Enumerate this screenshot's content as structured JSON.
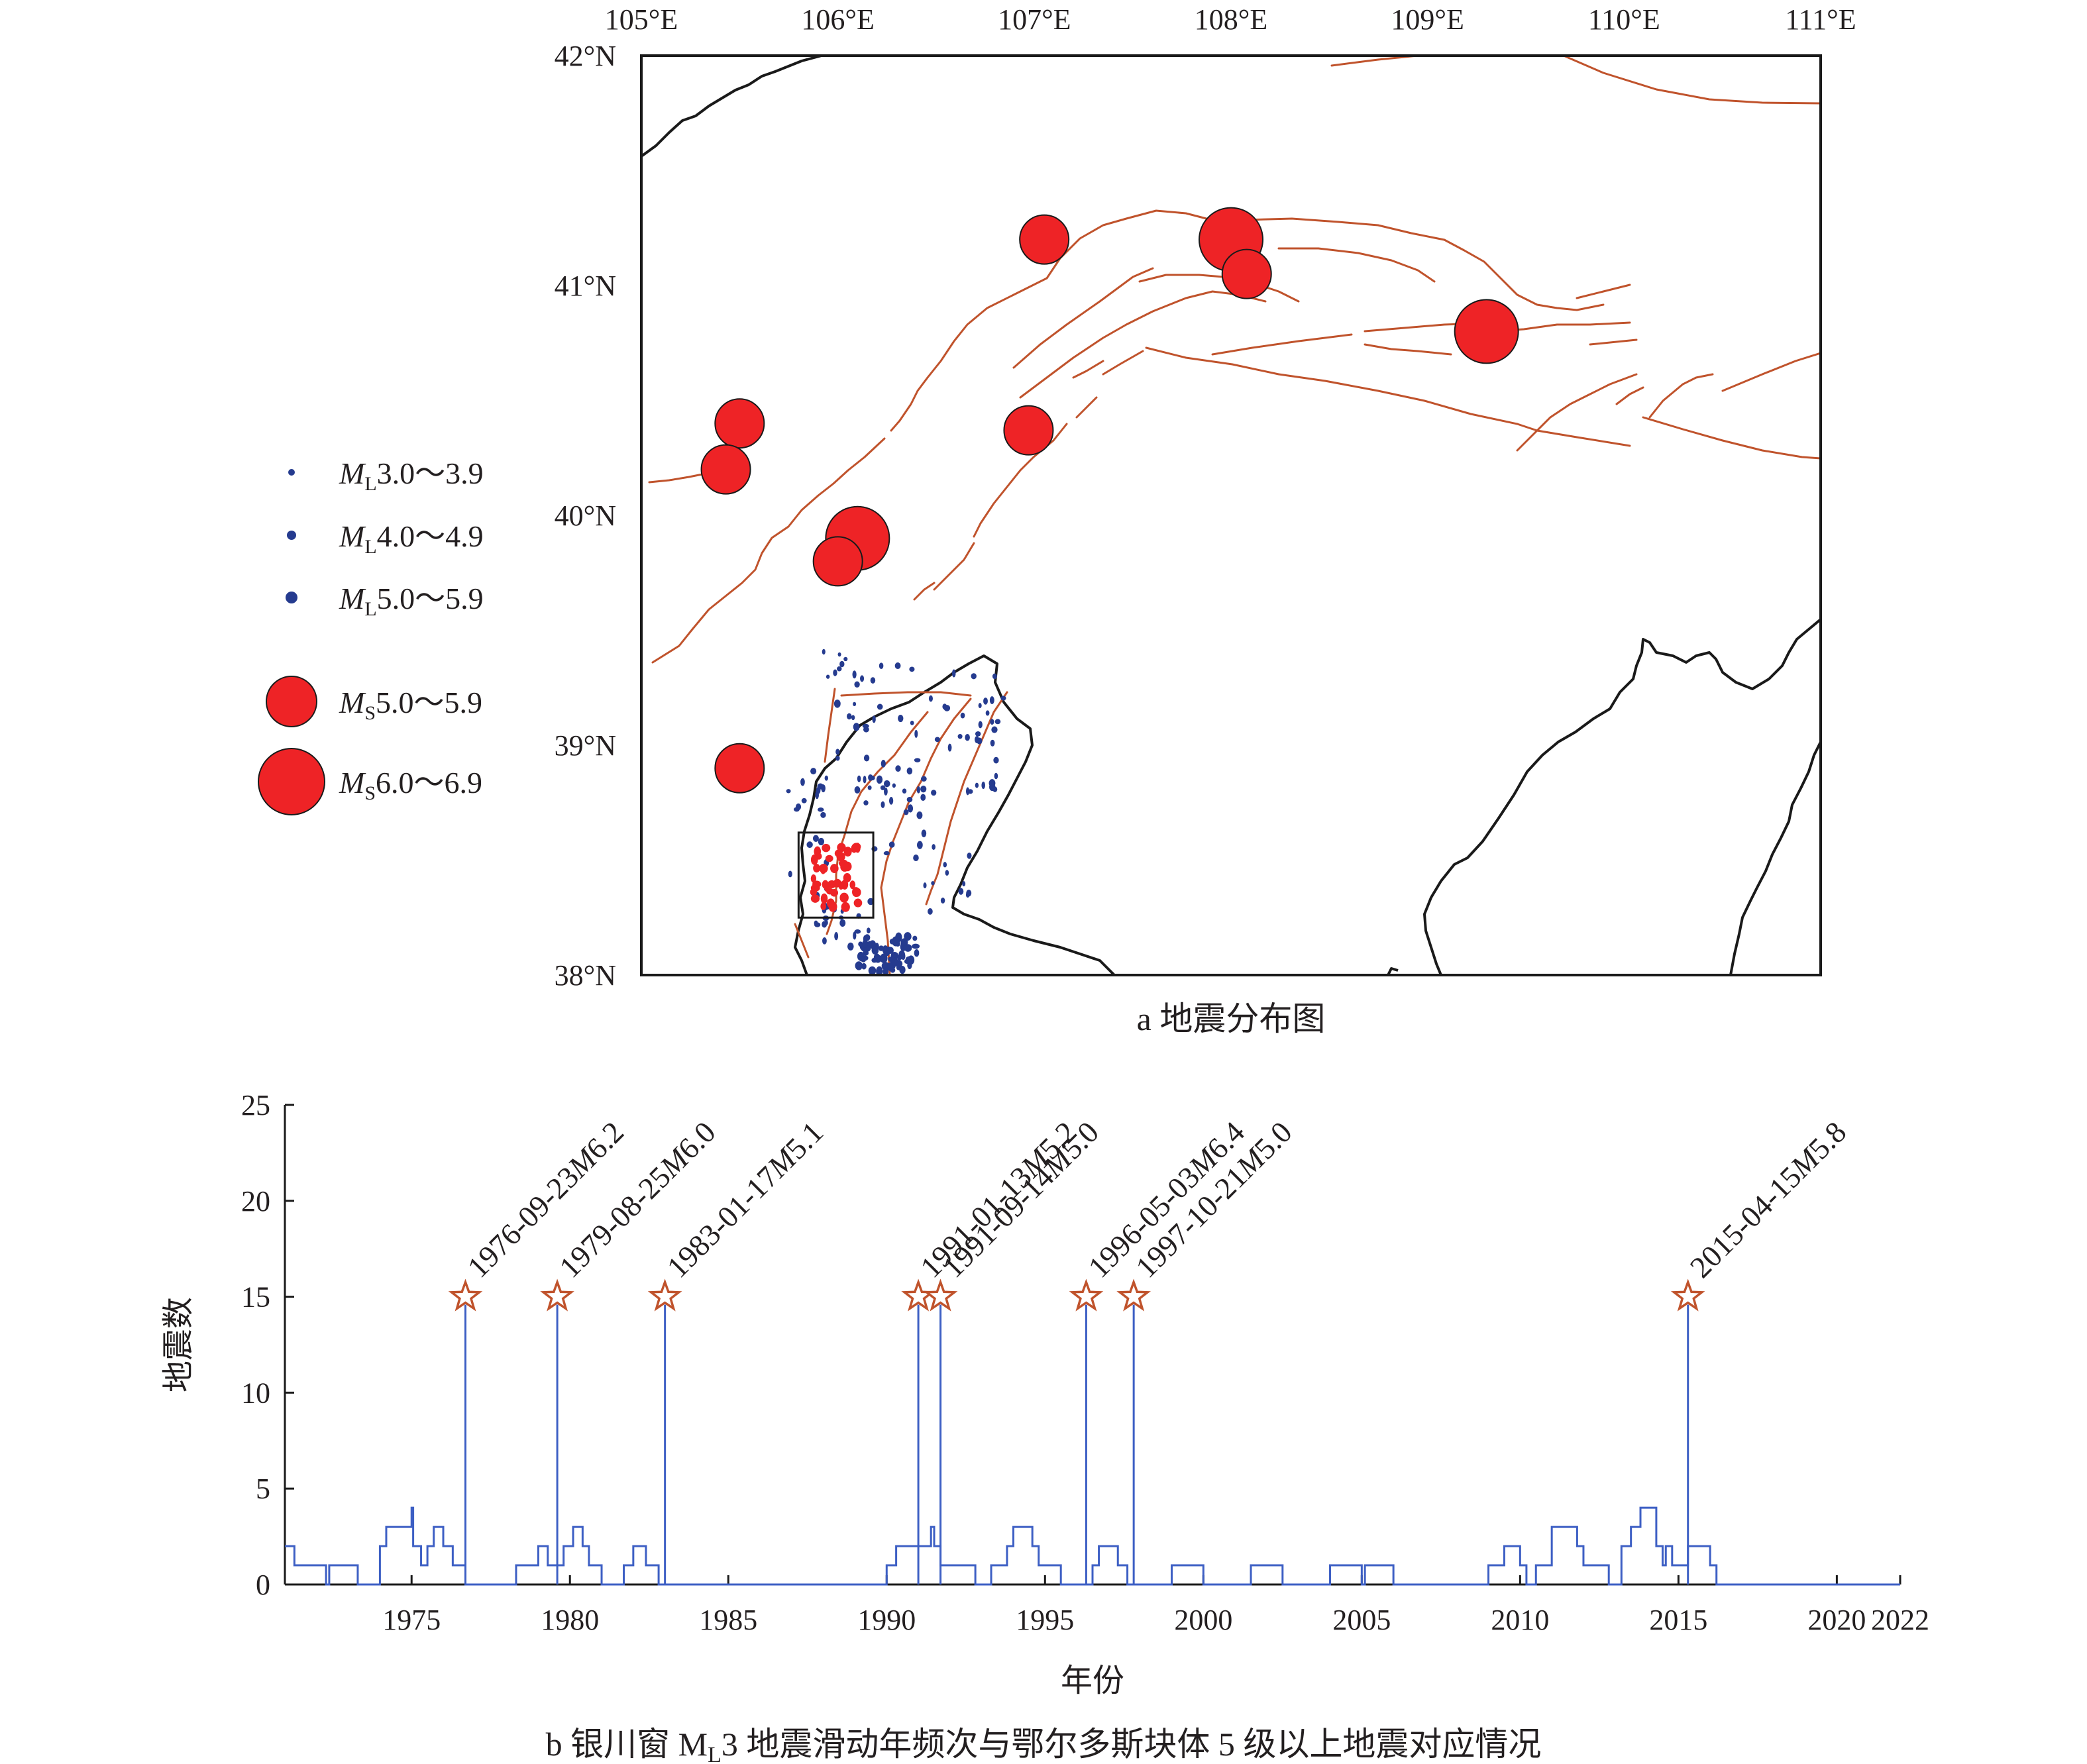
{
  "map": {
    "caption": "a 地震分布图",
    "lon_range": [
      105,
      111
    ],
    "lat_range": [
      38,
      42
    ],
    "lon_ticks": [
      105,
      106,
      107,
      108,
      109,
      110,
      111
    ],
    "lat_ticks": [
      38,
      39,
      40,
      41,
      42
    ],
    "lon_labels": [
      "105°E",
      "106°E",
      "107°E",
      "108°E",
      "109°E",
      "110°E",
      "111°E"
    ],
    "lat_labels": [
      "38°N",
      "39°N",
      "40°N",
      "41°N",
      "42°N"
    ],
    "colors": {
      "fault": "#c0532c",
      "ms_quake": "#ee2326",
      "ml_dot": "#253b8f",
      "boundary": "#1a1a1a"
    },
    "legend": [
      {
        "sym": "M",
        "sub": "L",
        "range": "3.0～3.9",
        "kind": "ml",
        "size": 1
      },
      {
        "sym": "M",
        "sub": "L",
        "range": "4.0～4.9",
        "kind": "ml",
        "size": 2
      },
      {
        "sym": "M",
        "sub": "L",
        "range": "5.0～5.9",
        "kind": "ml",
        "size": 3
      },
      {
        "sym": "M",
        "sub": "S",
        "range": "5.0～5.9",
        "kind": "ms",
        "size": 1
      },
      {
        "sym": "M",
        "sub": "S",
        "range": "6.0～6.9",
        "kind": "ms",
        "size": 2
      }
    ],
    "ms_events": [
      {
        "lon": 107.05,
        "lat": 41.2,
        "class": "5"
      },
      {
        "lon": 108.0,
        "lat": 41.2,
        "class": "6"
      },
      {
        "lon": 108.08,
        "lat": 41.05,
        "class": "5"
      },
      {
        "lon": 109.3,
        "lat": 40.8,
        "class": "6"
      },
      {
        "lon": 105.5,
        "lat": 40.4,
        "class": "5"
      },
      {
        "lon": 105.43,
        "lat": 40.2,
        "class": "5"
      },
      {
        "lon": 106.97,
        "lat": 40.37,
        "class": "5"
      },
      {
        "lon": 106.1,
        "lat": 39.9,
        "class": "6"
      },
      {
        "lon": 106.0,
        "lat": 39.8,
        "class": "5"
      },
      {
        "lon": 105.5,
        "lat": 38.9,
        "class": "5"
      }
    ],
    "study_box": {
      "lon": [
        105.8,
        106.18
      ],
      "lat": [
        38.25,
        38.62
      ]
    }
  },
  "chart_data": {
    "type": "line",
    "xlabel": "年份",
    "ylabel": "地震数",
    "caption": "b 银川窗 M",
    "caption_sub": "L",
    "caption_rest": "3 地震滑动年频次与鄂尔多斯块体 5 级以上地震对应情况",
    "xlim": [
      1971,
      2022
    ],
    "ylim": [
      0,
      25
    ],
    "x_ticks": [
      1975,
      1980,
      1985,
      1990,
      1995,
      2000,
      2005,
      2010,
      2015,
      2020,
      2022
    ],
    "y_ticks": [
      0,
      5,
      10,
      15,
      20,
      25
    ],
    "series": [
      {
        "step": [
          [
            1971.0,
            2
          ],
          [
            1971.3,
            1
          ],
          [
            1972.3,
            0
          ],
          [
            1972.4,
            1
          ],
          [
            1973.3,
            0
          ],
          [
            1974.0,
            2
          ],
          [
            1974.2,
            3
          ],
          [
            1975.0,
            4
          ],
          [
            1975.05,
            2
          ],
          [
            1975.3,
            1
          ],
          [
            1975.5,
            2
          ],
          [
            1975.7,
            3
          ],
          [
            1976.0,
            2
          ],
          [
            1976.3,
            1
          ],
          [
            1976.7,
            0
          ],
          [
            1978.3,
            1
          ],
          [
            1979.0,
            2
          ],
          [
            1979.3,
            1
          ],
          [
            1979.8,
            2
          ],
          [
            1980.1,
            3
          ],
          [
            1980.4,
            2
          ],
          [
            1980.6,
            1
          ],
          [
            1981.0,
            0
          ],
          [
            1981.7,
            1
          ],
          [
            1982.0,
            2
          ],
          [
            1982.4,
            1
          ],
          [
            1982.8,
            0
          ],
          [
            1990.0,
            1
          ],
          [
            1990.3,
            2
          ],
          [
            1991.4,
            3
          ],
          [
            1991.5,
            2
          ],
          [
            1991.7,
            1
          ],
          [
            1992.8,
            0
          ],
          [
            1993.3,
            1
          ],
          [
            1993.8,
            2
          ],
          [
            1994.0,
            3
          ],
          [
            1994.6,
            2
          ],
          [
            1994.8,
            1
          ],
          [
            1995.5,
            0
          ],
          [
            1996.5,
            1
          ],
          [
            1996.7,
            2
          ],
          [
            1997.3,
            1
          ],
          [
            1997.6,
            0
          ],
          [
            1999.0,
            1
          ],
          [
            2000.0,
            0
          ],
          [
            2001.5,
            1
          ],
          [
            2002.5,
            0
          ],
          [
            2004.0,
            1
          ],
          [
            2005.0,
            0
          ],
          [
            2005.1,
            1
          ],
          [
            2006.0,
            0
          ],
          [
            2009.0,
            1
          ],
          [
            2009.5,
            2
          ],
          [
            2010.0,
            1
          ],
          [
            2010.2,
            0
          ],
          [
            2010.5,
            1
          ],
          [
            2011.0,
            3
          ],
          [
            2011.8,
            2
          ],
          [
            2012.0,
            1
          ],
          [
            2012.8,
            0
          ],
          [
            2013.2,
            2
          ],
          [
            2013.5,
            3
          ],
          [
            2013.8,
            4
          ],
          [
            2014.3,
            2
          ],
          [
            2014.5,
            1
          ],
          [
            2014.6,
            2
          ],
          [
            2014.8,
            1
          ],
          [
            2015.3,
            2
          ],
          [
            2016.0,
            1
          ],
          [
            2016.2,
            0
          ],
          [
            2022.0,
            0
          ]
        ]
      }
    ],
    "events": [
      {
        "x": 1976.7,
        "label": "1976-09-23",
        "mag": "6.2"
      },
      {
        "x": 1979.6,
        "label": "1979-08-25",
        "mag": "6.0"
      },
      {
        "x": 1983.0,
        "label": "1983-01-17",
        "mag": "5.1"
      },
      {
        "x": 1991.0,
        "label": "1991-01-13",
        "mag": "5.2"
      },
      {
        "x": 1991.7,
        "label": "1991-09-14",
        "mag": "5.0"
      },
      {
        "x": 1996.3,
        "label": "1996-05-03",
        "mag": "6.4"
      },
      {
        "x": 1997.8,
        "label": "1997-10-21",
        "mag": "5.0"
      },
      {
        "x": 2015.3,
        "label": "2015-04-15",
        "mag": "5.8"
      }
    ],
    "event_marker_y": 15,
    "colors": {
      "line": "#3d5fc4",
      "star": "#c0532c"
    }
  }
}
